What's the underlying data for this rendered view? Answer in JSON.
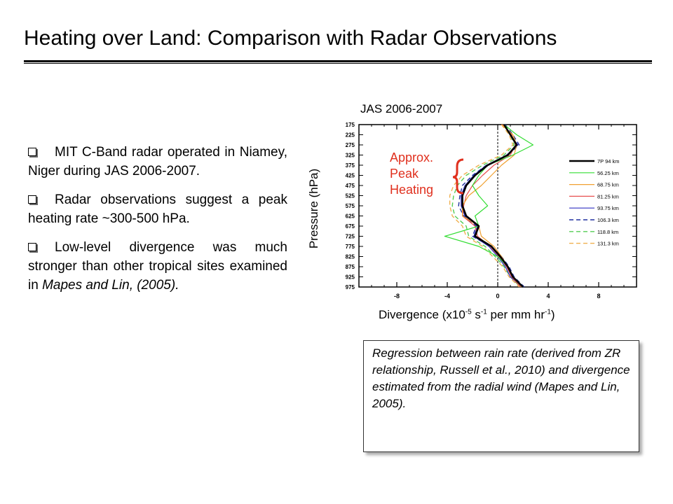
{
  "slide": {
    "title": "Heating over Land: Comparison with Radar Observations"
  },
  "bullets": [
    {
      "text": "MIT C-Band radar operated in Niamey, Niger during JAS 2006-2007.",
      "em": ""
    },
    {
      "text": "Radar observations suggest a peak heating rate ~300-500 hPa.",
      "em": ""
    },
    {
      "text": "Low-level divergence was much stronger than other tropical sites examined in ",
      "em": "Mapes and Lin, (2005)."
    }
  ],
  "annotation": {
    "line1": "Approx.",
    "line2": "Peak",
    "line3": "Heating",
    "color": "#e0301e"
  },
  "caption": "Regression between rain rate (derived from ZR relationship, Russell et al., 2010) and divergence estimated from the radial wind (Mapes and Lin, 2005).",
  "chart_data": {
    "type": "line",
    "title": "JAS 2006-2007",
    "xlabel_main": "Divergence (x10",
    "xlabel_exp1": "-5",
    "xlabel_mid": " s",
    "xlabel_exp2": "-1",
    "xlabel_mid2": " per mm hr",
    "xlabel_exp3": "-1",
    "xlabel_end": ")",
    "ylabel": "Pressure (hPa)",
    "xlim": [
      -11,
      11
    ],
    "ylim": [
      975,
      175
    ],
    "y_inverted": true,
    "xticks": [
      -8,
      -4,
      0,
      4,
      8
    ],
    "yticks": [
      175,
      225,
      275,
      325,
      375,
      425,
      475,
      525,
      575,
      625,
      675,
      725,
      775,
      825,
      875,
      925,
      975
    ],
    "zero_line": true,
    "legend_position": "right",
    "pressure": [
      175,
      225,
      275,
      325,
      375,
      425,
      475,
      525,
      575,
      625,
      675,
      725,
      775,
      825,
      875,
      925,
      975
    ],
    "series": [
      {
        "name": "7P 94 km",
        "color": "#000000",
        "dash": "solid",
        "width": 2.6,
        "values": [
          0.5,
          1.0,
          1.5,
          0.8,
          -0.8,
          -1.8,
          -2.5,
          -2.8,
          -2.8,
          -2.5,
          -1.5,
          -1.8,
          -0.5,
          0.2,
          0.8,
          1.2,
          2.0
        ]
      },
      {
        "name": "56.25 km",
        "color": "#33dd33",
        "dash": "solid",
        "width": 1.2,
        "values": [
          0.5,
          1.5,
          2.8,
          1.2,
          -0.8,
          -1.5,
          -2.0,
          -1.5,
          -0.8,
          -1.8,
          -1.5,
          -4.2,
          -1.5,
          0.0,
          0.8,
          1.2,
          2.0
        ]
      },
      {
        "name": "68.75 km",
        "color": "#f0a030",
        "dash": "solid",
        "width": 1.2,
        "values": [
          0.3,
          1.2,
          1.5,
          1.3,
          0.3,
          -0.5,
          -1.3,
          -2.3,
          -2.8,
          -2.8,
          -1.5,
          -1.3,
          -0.3,
          0.3,
          0.8,
          1.2,
          1.9
        ]
      },
      {
        "name": "81.25 km",
        "color": "#e85050",
        "dash": "solid",
        "width": 1.2,
        "values": [
          0.4,
          1.1,
          1.4,
          1.0,
          -0.3,
          -1.2,
          -2.0,
          -2.5,
          -2.7,
          -2.8,
          -1.8,
          -1.6,
          -0.6,
          0.1,
          0.7,
          1.1,
          1.8
        ]
      },
      {
        "name": "93.75 km",
        "color": "#3030c0",
        "dash": "solid",
        "width": 1.2,
        "values": [
          0.5,
          1.0,
          1.6,
          0.7,
          -0.9,
          -1.9,
          -2.6,
          -2.9,
          -2.9,
          -2.6,
          -1.6,
          -1.9,
          -0.7,
          0.0,
          0.6,
          1.0,
          1.9
        ]
      },
      {
        "name": "106.3 km",
        "color": "#2030a0",
        "dash": "dashed",
        "width": 1.4,
        "values": [
          0.6,
          1.2,
          1.7,
          0.8,
          -0.9,
          -2.0,
          -2.8,
          -3.0,
          -3.1,
          -2.7,
          -1.7,
          -2.0,
          -0.6,
          0.3,
          0.9,
          1.3,
          2.1
        ]
      },
      {
        "name": "118.8 km",
        "color": "#55cc55",
        "dash": "dashed",
        "width": 1.4,
        "values": [
          0.4,
          1.0,
          1.3,
          0.5,
          -1.2,
          -2.5,
          -3.2,
          -3.5,
          -3.6,
          -3.4,
          -2.5,
          -2.3,
          -1.0,
          -0.2,
          0.5,
          1.0,
          1.8
        ]
      },
      {
        "name": "131.3 km",
        "color": "#f0b050",
        "dash": "dashed",
        "width": 1.4,
        "values": [
          0.3,
          0.9,
          1.2,
          0.3,
          -1.5,
          -2.8,
          -3.5,
          -3.8,
          -3.8,
          -3.6,
          -2.8,
          -2.5,
          -1.2,
          -0.4,
          0.4,
          0.9,
          1.7
        ]
      }
    ]
  }
}
